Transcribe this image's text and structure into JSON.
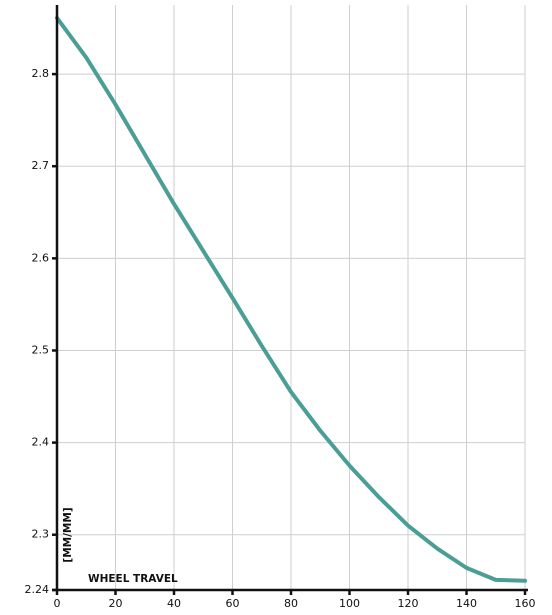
{
  "chart_data": {
    "type": "line",
    "x_label": "WHEEL TRAVEL",
    "y_label": "[MM/MM]",
    "x": [
      0,
      10,
      20,
      30,
      40,
      50,
      60,
      70,
      80,
      90,
      100,
      110,
      120,
      130,
      140,
      150,
      160
    ],
    "series": [
      {
        "color": "#4a9e96",
        "values": [
          2.861,
          2.818,
          2.767,
          2.713,
          2.659,
          2.608,
          2.557,
          2.505,
          2.455,
          2.413,
          2.375,
          2.341,
          2.31,
          2.285,
          2.264,
          2.251,
          2.25
        ]
      }
    ],
    "xlim": [
      0,
      160
    ],
    "xticks": [
      0,
      20,
      40,
      60,
      80,
      100,
      120,
      140,
      160
    ],
    "ylim": [
      2.24,
      2.875
    ],
    "yticks": [
      2.24,
      2.3,
      2.4,
      2.5,
      2.6,
      2.7,
      2.8
    ],
    "grid": true
  }
}
